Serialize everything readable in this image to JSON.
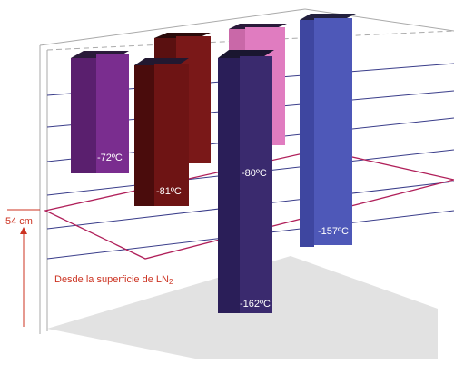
{
  "diagram": {
    "height_label": "54 cm",
    "surface_caption": "Desde la superficie de LN",
    "surface_caption_sub": "2",
    "columns": [
      {
        "id": "col-purple",
        "label": "-72ºC",
        "colors": {
          "front": "#7a2d8f",
          "side": "#5a1f6e",
          "top": "#2a1a3a"
        }
      },
      {
        "id": "col-maroon-back",
        "label": "",
        "colors": {
          "front": "#7a1818",
          "side": "#5a1010",
          "top": "#2a0a0a"
        }
      },
      {
        "id": "col-maroon-front",
        "label": "-81ºC",
        "colors": {
          "front": "#6e1414",
          "side": "#4a0c0c",
          "top": "#221830"
        }
      },
      {
        "id": "col-pink",
        "label": "",
        "colors": {
          "front": "#e07cc0",
          "side": "#c968a8",
          "top": "#2a1a3a"
        }
      },
      {
        "id": "col-blue",
        "label": "-157ºC",
        "colors": {
          "front": "#4e58b8",
          "side": "#3e46a0",
          "top": "#22203e"
        }
      },
      {
        "id": "col-deep-front",
        "label": "-162ºC",
        "colors": {
          "front": "#3a2a6e",
          "side": "#2a1e58",
          "top": "#1a1630"
        }
      },
      {
        "id": "col-deep-upper",
        "label": "-80ºC",
        "colors": {
          "front": "#3a2a6e",
          "side": "#2a1e58",
          "top": "#1a1630"
        }
      }
    ],
    "colors": {
      "grid_line": "#3a3d8a",
      "plane": "#b0205a",
      "annotation": "#cc3322",
      "frame": "#aaaaaa",
      "floor": "#e2e2e2",
      "column_text": "#ffffff"
    }
  }
}
